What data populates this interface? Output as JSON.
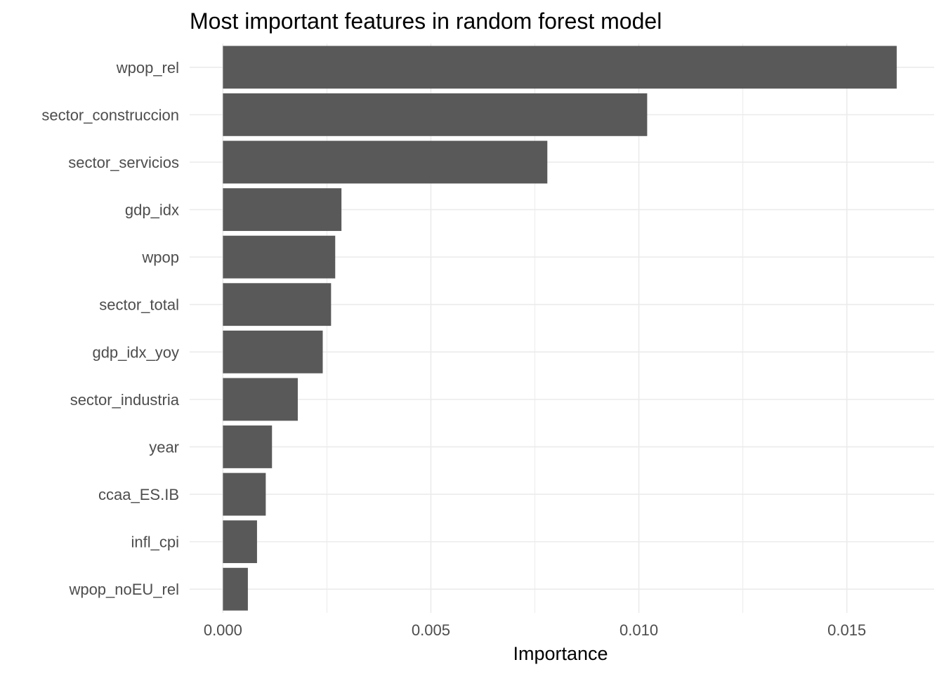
{
  "chart_data": {
    "type": "bar",
    "orientation": "horizontal",
    "title": "Most important features in random forest model",
    "xlabel": "Importance",
    "ylabel": "",
    "categories": [
      "wpop_rel",
      "sector_construccion",
      "sector_servicios",
      "gdp_idx",
      "wpop",
      "sector_total",
      "gdp_idx_yoy",
      "sector_industria",
      "year",
      "ccaa_ES.IB",
      "infl_cpi",
      "wpop_noEU_rel"
    ],
    "values": [
      0.0162,
      0.0102,
      0.0078,
      0.00285,
      0.0027,
      0.0026,
      0.0024,
      0.0018,
      0.00118,
      0.00103,
      0.00082,
      0.0006
    ],
    "xlim": [
      -0.0008,
      0.0171
    ],
    "xticks": [
      0.0,
      0.005,
      0.01,
      0.015
    ],
    "xtick_labels": [
      "0.000",
      "0.005",
      "0.010",
      "0.015"
    ],
    "bar_color": "#595959",
    "grid": true,
    "legend": "none"
  }
}
